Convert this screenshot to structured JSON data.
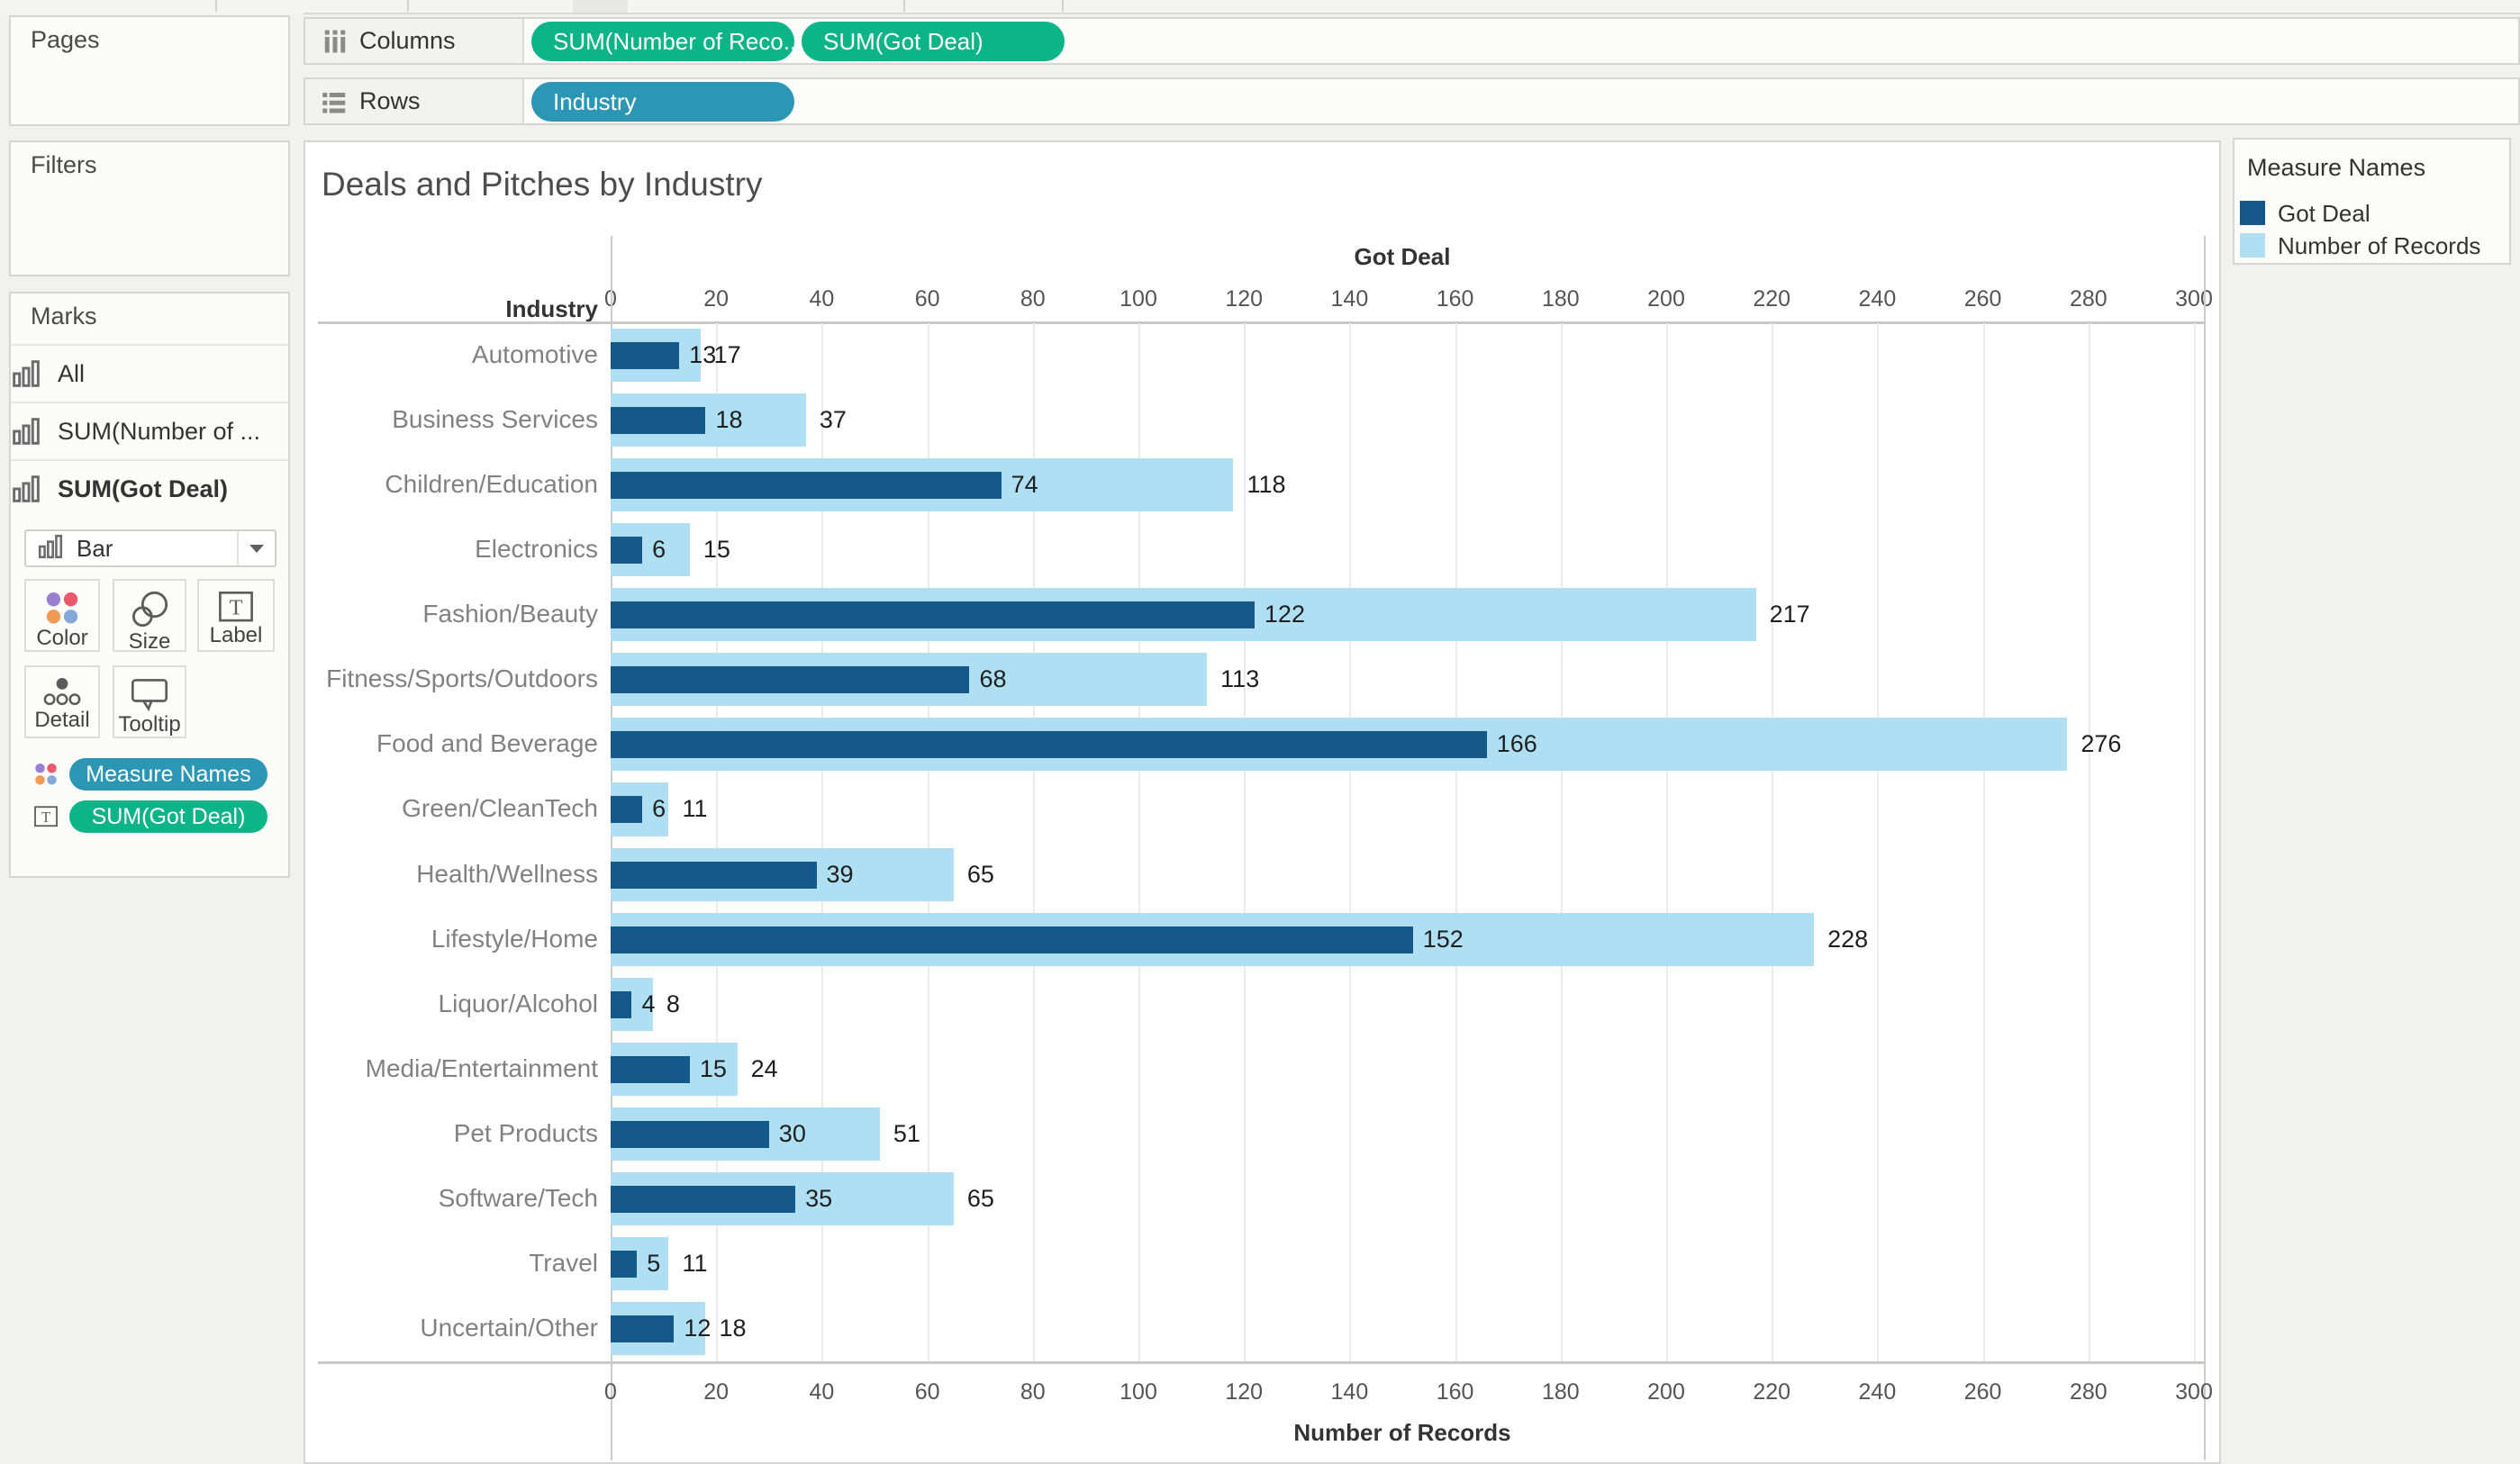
{
  "shelves": {
    "columns": {
      "label": "Columns",
      "pills": [
        "SUM(Number of Reco..",
        "SUM(Got Deal)"
      ]
    },
    "rows": {
      "label": "Rows",
      "pills": [
        "Industry"
      ]
    }
  },
  "left_panels": {
    "pages_label": "Pages",
    "filters_label": "Filters",
    "marks_label": "Marks",
    "marks_tabs": [
      {
        "label": "All",
        "bold": false
      },
      {
        "label": "SUM(Number of ...",
        "bold": false
      },
      {
        "label": "SUM(Got Deal)",
        "bold": true
      }
    ],
    "mark_type_dropdown": "Bar",
    "mark_buttons": [
      {
        "label": "Color",
        "icon": "color"
      },
      {
        "label": "Size",
        "icon": "size"
      },
      {
        "label": "Label",
        "icon": "label"
      },
      {
        "label": "Detail",
        "icon": "detail"
      },
      {
        "label": "Tooltip",
        "icon": "tooltip"
      }
    ],
    "marks_pills": [
      {
        "label": "Measure Names",
        "color": "#2C96B5",
        "icon": "color"
      },
      {
        "label": "SUM(Got Deal)",
        "color": "#0CB488",
        "icon": "label"
      }
    ]
  },
  "legend": {
    "title": "Measure Names",
    "items": [
      {
        "label": "Got Deal",
        "color": "#15598A"
      },
      {
        "label": "Number of Records",
        "color": "#AEDFF2"
      }
    ]
  },
  "chart_data": {
    "type": "bar",
    "orientation": "horizontal",
    "title": "Deals and Pitches by Industry",
    "row_header": "Industry",
    "top_axis_label": "Got Deal",
    "bottom_axis_label": "Number of Records",
    "axis_min": 0,
    "axis_max": 300,
    "tick_step": 20,
    "grid": true,
    "legend_position": "right",
    "categories": [
      "Automotive",
      "Business Services",
      "Children/Education",
      "Electronics",
      "Fashion/Beauty",
      "Fitness/Sports/Outdoors",
      "Food and Beverage",
      "Green/CleanTech",
      "Health/Wellness",
      "Lifestyle/Home",
      "Liquor/Alcohol",
      "Media/Entertainment",
      "Pet Products",
      "Software/Tech",
      "Travel",
      "Uncertain/Other"
    ],
    "series": [
      {
        "name": "Got Deal",
        "color": "#15598A",
        "values": [
          13,
          18,
          74,
          6,
          122,
          68,
          166,
          6,
          39,
          152,
          4,
          15,
          30,
          35,
          5,
          12
        ]
      },
      {
        "name": "Number of Records",
        "color": "#AEDFF2",
        "values": [
          17,
          37,
          118,
          15,
          217,
          113,
          276,
          11,
          65,
          228,
          8,
          24,
          51,
          65,
          11,
          18
        ]
      }
    ]
  },
  "colors": {
    "pill_green": "#0CB488",
    "pill_blue": "#2C96B5",
    "dark_bar": "#15598A",
    "light_bar": "#AEDFF2"
  }
}
